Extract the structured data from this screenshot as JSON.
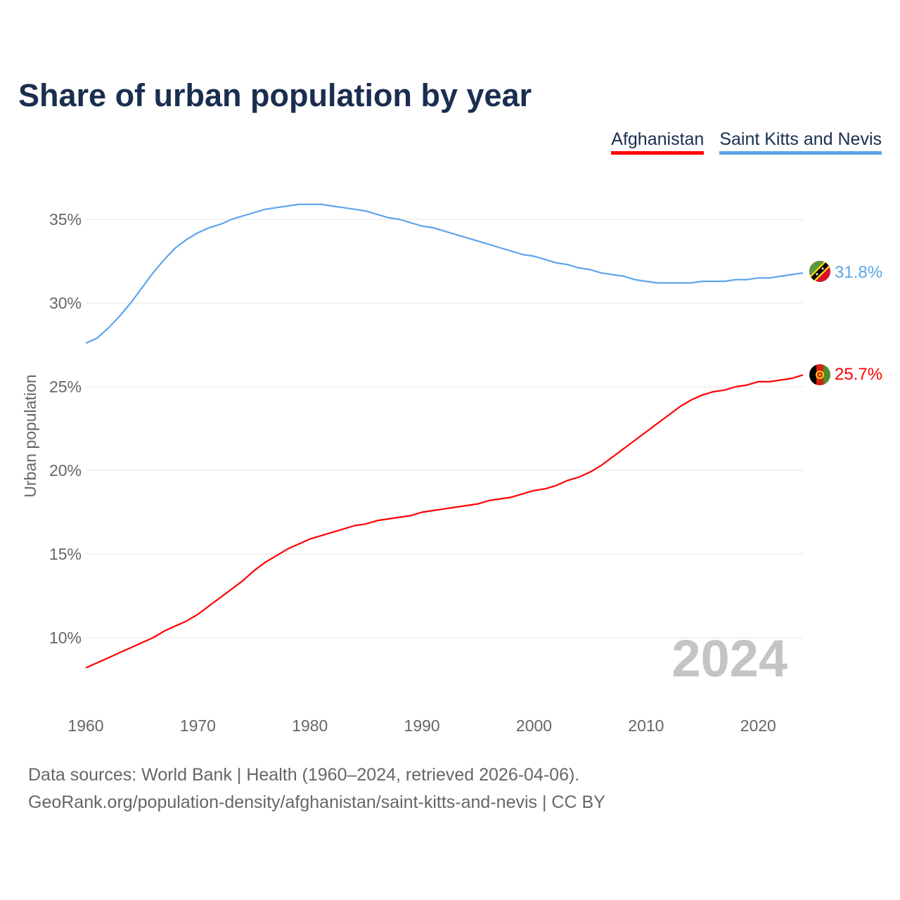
{
  "title": "Share of urban population by year",
  "footer": {
    "line1": "Data sources: World Bank | Health (1960–2024, retrieved 2026-04-06).",
    "line2": "GeoRank.org/population-density/afghanistan/saint-kitts-and-nevis | CC BY"
  },
  "chart_data": {
    "type": "line",
    "title": "Share of urban population by year",
    "xlabel": "",
    "ylabel": "Urban population",
    "xlim": [
      1960,
      2024
    ],
    "ylim": [
      6.5,
      37
    ],
    "yticks": [
      10,
      15,
      20,
      25,
      30,
      35
    ],
    "ytick_labels": [
      "10%",
      "15%",
      "20%",
      "25%",
      "30%",
      "35%"
    ],
    "xticks": [
      1960,
      1970,
      1980,
      1990,
      2000,
      2010,
      2020
    ],
    "xtick_labels": [
      "1960",
      "1970",
      "1980",
      "1990",
      "2000",
      "2010",
      "2020"
    ],
    "grid": true,
    "legend": "top-right",
    "year_watermark": "2024",
    "x": [
      1960,
      1961,
      1962,
      1963,
      1964,
      1965,
      1966,
      1967,
      1968,
      1969,
      1970,
      1971,
      1972,
      1973,
      1974,
      1975,
      1976,
      1977,
      1978,
      1979,
      1980,
      1981,
      1982,
      1983,
      1984,
      1985,
      1986,
      1987,
      1988,
      1989,
      1990,
      1991,
      1992,
      1993,
      1994,
      1995,
      1996,
      1997,
      1998,
      1999,
      2000,
      2001,
      2002,
      2003,
      2004,
      2005,
      2006,
      2007,
      2008,
      2009,
      2010,
      2011,
      2012,
      2013,
      2014,
      2015,
      2016,
      2017,
      2018,
      2019,
      2020,
      2021,
      2022,
      2023,
      2024
    ],
    "series": [
      {
        "name": "Afghanistan",
        "color": "#ff0000",
        "end_label": "25.7%",
        "values": [
          8.2,
          8.5,
          8.8,
          9.1,
          9.4,
          9.7,
          10.0,
          10.4,
          10.7,
          11.0,
          11.4,
          11.9,
          12.4,
          12.9,
          13.4,
          14.0,
          14.5,
          14.9,
          15.3,
          15.6,
          15.9,
          16.1,
          16.3,
          16.5,
          16.7,
          16.8,
          17.0,
          17.1,
          17.2,
          17.3,
          17.5,
          17.6,
          17.7,
          17.8,
          17.9,
          18.0,
          18.2,
          18.3,
          18.4,
          18.6,
          18.8,
          18.9,
          19.1,
          19.4,
          19.6,
          19.9,
          20.3,
          20.8,
          21.3,
          21.8,
          22.3,
          22.8,
          23.3,
          23.8,
          24.2,
          24.5,
          24.7,
          24.8,
          25.0,
          25.1,
          25.3,
          25.3,
          25.4,
          25.5,
          25.7
        ]
      },
      {
        "name": "Saint Kitts and Nevis",
        "color": "#5da5ea",
        "end_label": "31.8%",
        "values": [
          27.6,
          27.9,
          28.5,
          29.2,
          30.0,
          30.9,
          31.8,
          32.6,
          33.3,
          33.8,
          34.2,
          34.5,
          34.7,
          35.0,
          35.2,
          35.4,
          35.6,
          35.7,
          35.8,
          35.9,
          35.9,
          35.9,
          35.8,
          35.7,
          35.6,
          35.5,
          35.3,
          35.1,
          35.0,
          34.8,
          34.6,
          34.5,
          34.3,
          34.1,
          33.9,
          33.7,
          33.5,
          33.3,
          33.1,
          32.9,
          32.8,
          32.6,
          32.4,
          32.3,
          32.1,
          32.0,
          31.8,
          31.7,
          31.6,
          31.4,
          31.3,
          31.2,
          31.2,
          31.2,
          31.2,
          31.3,
          31.3,
          31.3,
          31.4,
          31.4,
          31.5,
          31.5,
          31.6,
          31.7,
          31.8
        ]
      }
    ]
  }
}
